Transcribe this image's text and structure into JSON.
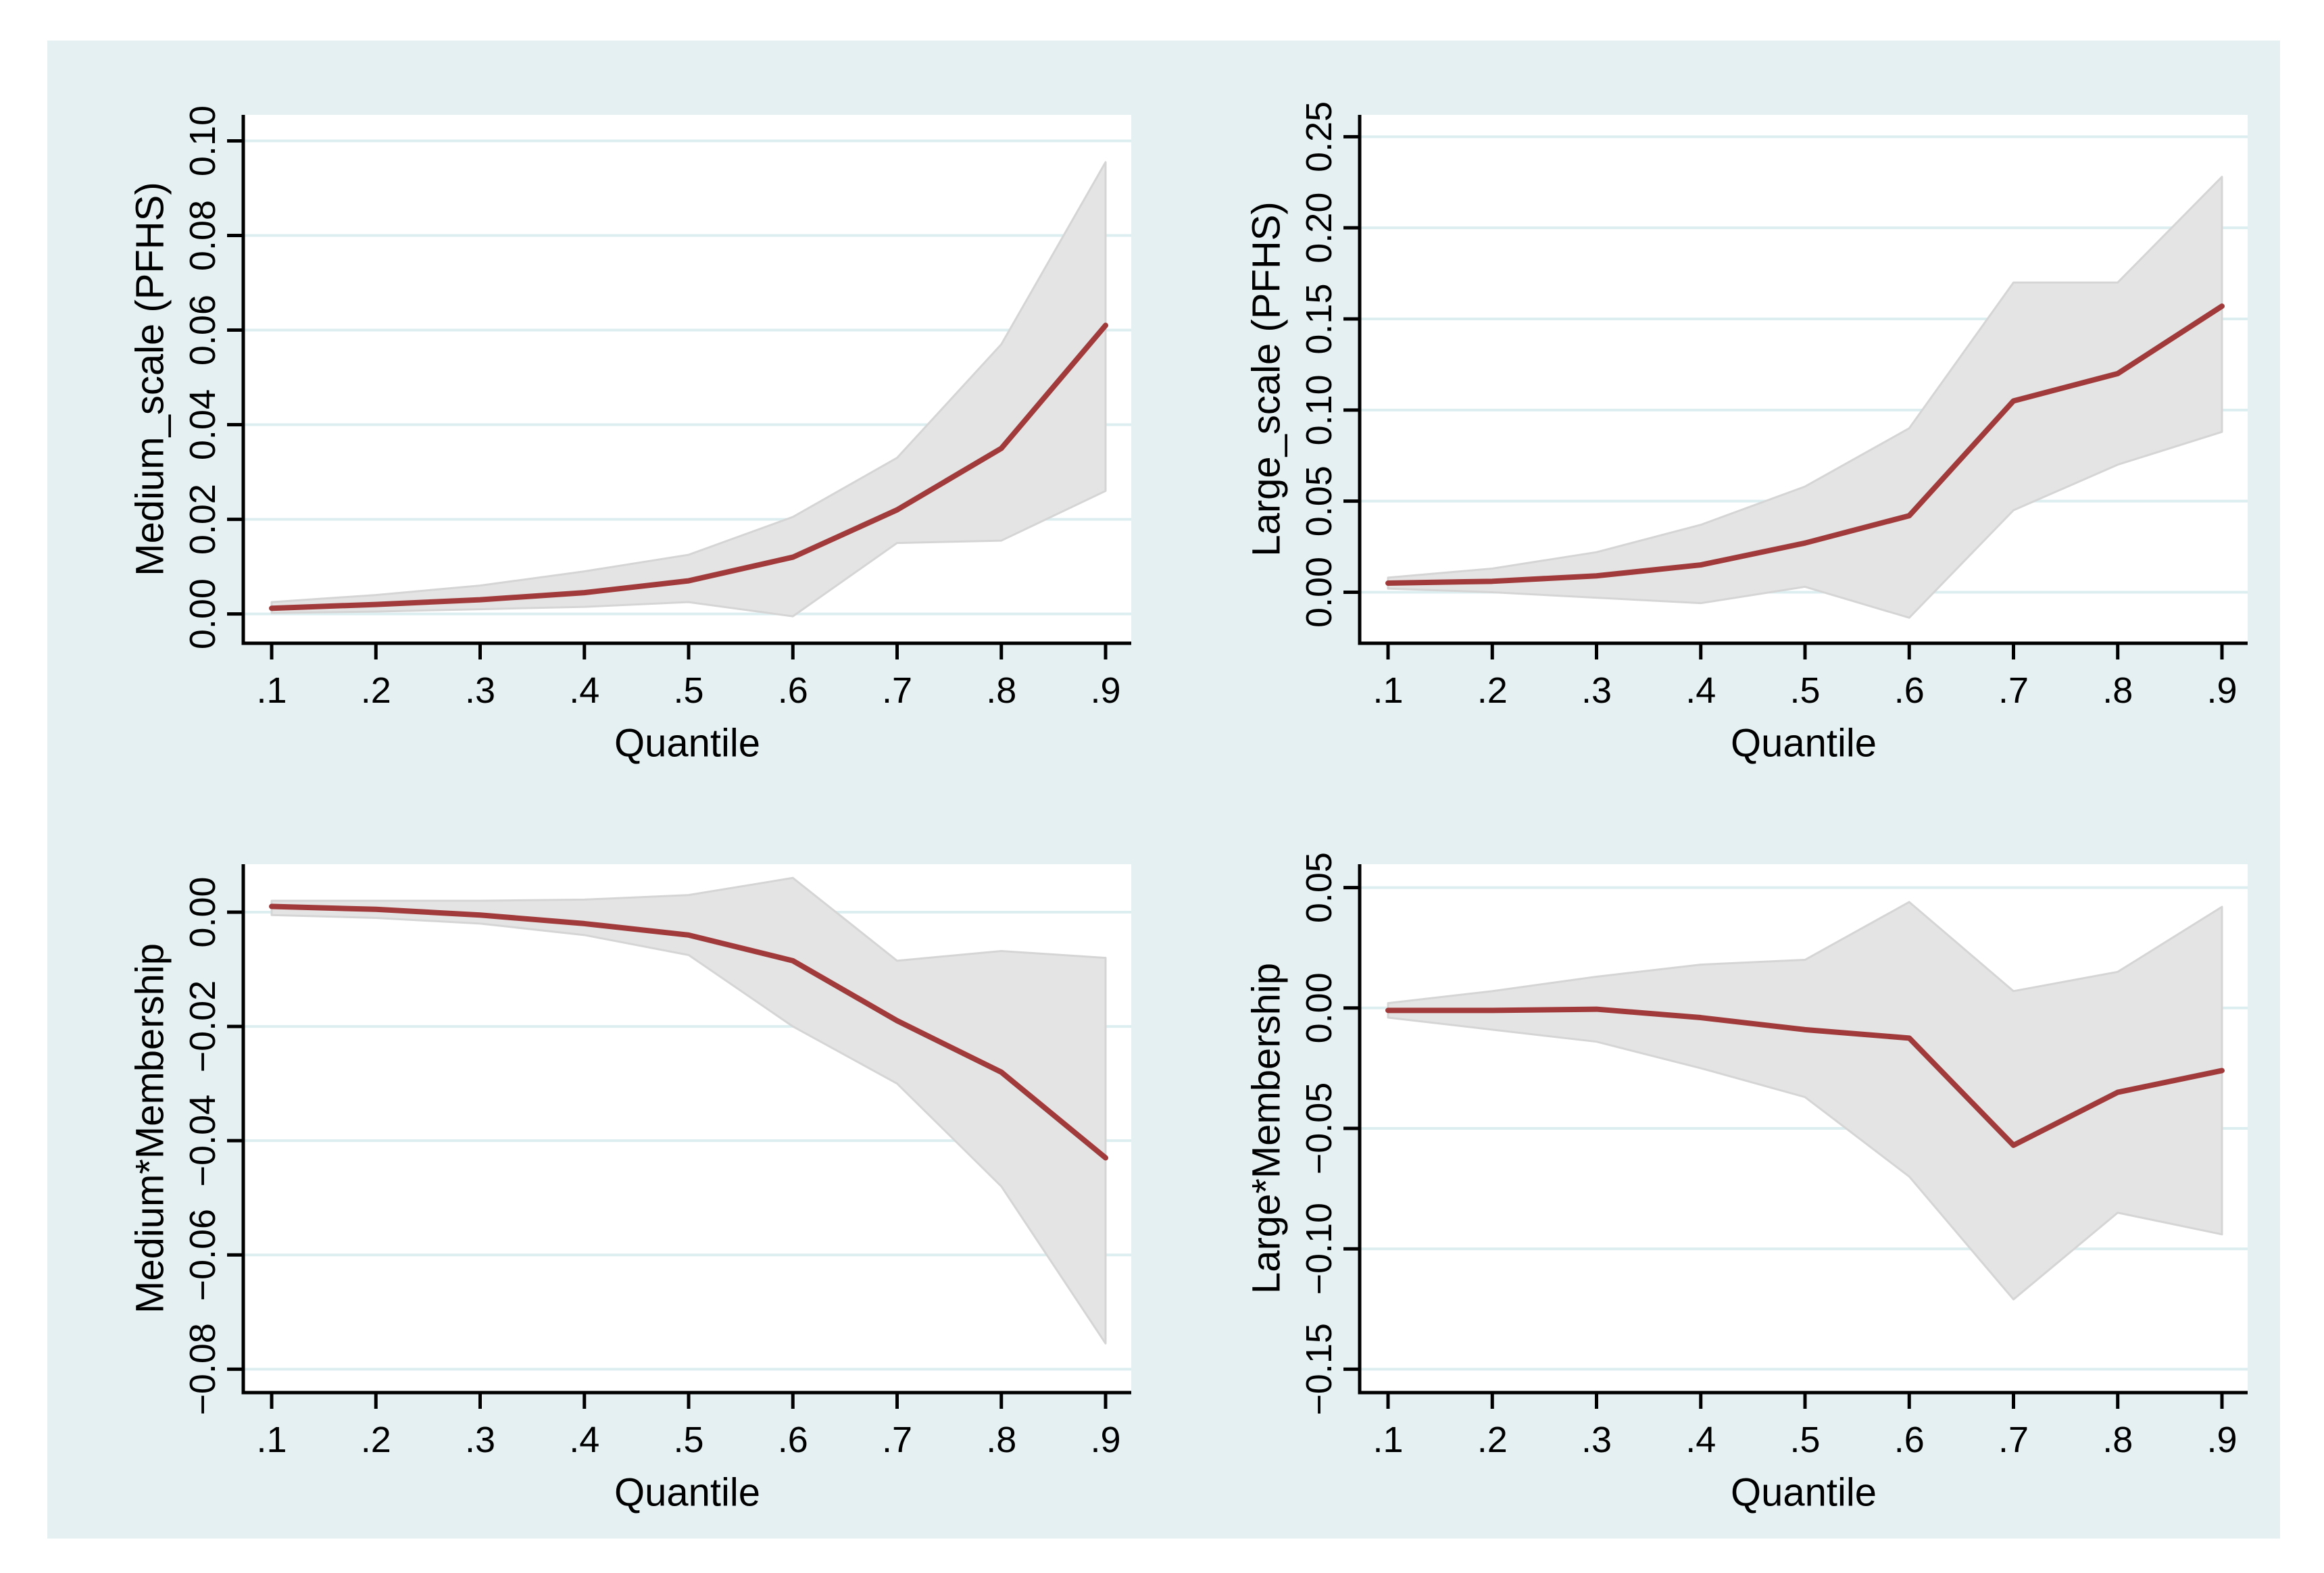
{
  "figure": {
    "name": "quantile-regression-coefficient-plots",
    "background": "#ffffff",
    "plot_region_bg": "#e4f0f2",
    "panel_bg": "#ffffff",
    "grid_color": "#ddeef0",
    "band_fill": "#e4e4e4",
    "band_edge": "#d5d5d5",
    "line_color": "#a13b3b",
    "axis_color": "#000000",
    "text_color": "#000000"
  },
  "chart_data": [
    {
      "type": "line",
      "panel": "top-left",
      "ylabel": "Medium_scale (PFHS)",
      "xlabel": "Quantile",
      "legend_position": "none",
      "grid": true,
      "x": [
        0.1,
        0.2,
        0.3,
        0.4,
        0.5,
        0.6,
        0.7,
        0.8,
        0.9
      ],
      "x_tick_labels": [
        ".1",
        ".2",
        ".3",
        ".4",
        ".5",
        ".6",
        ".7",
        ".8",
        ".9"
      ],
      "y_ticks": [
        {
          "v": 0.0,
          "label": "0.00"
        },
        {
          "v": 0.02,
          "label": "0.02"
        },
        {
          "v": 0.04,
          "label": "0.04"
        },
        {
          "v": 0.06,
          "label": "0.06"
        },
        {
          "v": 0.08,
          "label": "0.08"
        },
        {
          "v": 0.1,
          "label": "0.10"
        }
      ],
      "ylim": [
        -0.0062,
        0.1055
      ],
      "series": [
        {
          "name": "estimate",
          "values": [
            0.0012,
            0.002,
            0.003,
            0.0045,
            0.007,
            0.012,
            0.022,
            0.035,
            0.061
          ]
        },
        {
          "name": "ci_upper",
          "values": [
            0.0025,
            0.004,
            0.006,
            0.009,
            0.0125,
            0.0205,
            0.033,
            0.057,
            0.0955
          ]
        },
        {
          "name": "ci_lower",
          "values": [
            0.0002,
            0.0005,
            0.001,
            0.0015,
            0.0025,
            -0.0005,
            0.015,
            0.0155,
            0.026
          ]
        }
      ]
    },
    {
      "type": "line",
      "panel": "top-right",
      "ylabel": "Large_scale (PFHS)",
      "xlabel": "Quantile",
      "legend_position": "none",
      "grid": true,
      "x": [
        0.1,
        0.2,
        0.3,
        0.4,
        0.5,
        0.6,
        0.7,
        0.8,
        0.9
      ],
      "x_tick_labels": [
        ".1",
        ".2",
        ".3",
        ".4",
        ".5",
        ".6",
        ".7",
        ".8",
        ".9"
      ],
      "y_ticks": [
        {
          "v": 0.0,
          "label": "0.00"
        },
        {
          "v": 0.05,
          "label": "0.05"
        },
        {
          "v": 0.1,
          "label": "0.10"
        },
        {
          "v": 0.15,
          "label": "0.15"
        },
        {
          "v": 0.2,
          "label": "0.20"
        },
        {
          "v": 0.25,
          "label": "0.25"
        }
      ],
      "ylim": [
        -0.028,
        0.262
      ],
      "series": [
        {
          "name": "estimate",
          "values": [
            0.005,
            0.006,
            0.009,
            0.015,
            0.027,
            0.042,
            0.105,
            0.12,
            0.157
          ]
        },
        {
          "name": "ci_upper",
          "values": [
            0.008,
            0.013,
            0.022,
            0.037,
            0.058,
            0.09,
            0.17,
            0.17,
            0.228
          ]
        },
        {
          "name": "ci_lower",
          "values": [
            0.002,
            0.0,
            -0.003,
            -0.006,
            0.003,
            -0.014,
            0.045,
            0.07,
            0.088
          ]
        }
      ]
    },
    {
      "type": "line",
      "panel": "bottom-left",
      "ylabel": "Medium*Membership",
      "xlabel": "Quantile",
      "legend_position": "none",
      "grid": true,
      "x": [
        0.1,
        0.2,
        0.3,
        0.4,
        0.5,
        0.6,
        0.7,
        0.8,
        0.9
      ],
      "x_tick_labels": [
        ".1",
        ".2",
        ".3",
        ".4",
        ".5",
        ".6",
        ".7",
        ".8",
        ".9"
      ],
      "y_ticks": [
        {
          "v": 0.0,
          "label": "0.00"
        },
        {
          "v": -0.02,
          "label": "−0.02"
        },
        {
          "v": -0.04,
          "label": "−0.04"
        },
        {
          "v": -0.06,
          "label": "−0.06"
        },
        {
          "v": -0.08,
          "label": "−0.08"
        }
      ],
      "ylim": [
        -0.0841,
        0.0084
      ],
      "series": [
        {
          "name": "estimate",
          "values": [
            0.001,
            0.0005,
            -0.0005,
            -0.002,
            -0.004,
            -0.0085,
            -0.019,
            -0.028,
            -0.043
          ]
        },
        {
          "name": "ci_upper",
          "values": [
            0.002,
            0.002,
            0.002,
            0.0022,
            0.003,
            0.006,
            -0.0085,
            -0.0068,
            -0.008
          ]
        },
        {
          "name": "ci_lower",
          "values": [
            -0.0005,
            -0.001,
            -0.002,
            -0.004,
            -0.0075,
            -0.02,
            -0.03,
            -0.048,
            -0.0755
          ]
        }
      ]
    },
    {
      "type": "line",
      "panel": "bottom-right",
      "ylabel": "Large*Membership",
      "xlabel": "Quantile",
      "legend_position": "none",
      "grid": true,
      "x": [
        0.1,
        0.2,
        0.3,
        0.4,
        0.5,
        0.6,
        0.7,
        0.8,
        0.9
      ],
      "x_tick_labels": [
        ".1",
        ".2",
        ".3",
        ".4",
        ".5",
        ".6",
        ".7",
        ".8",
        ".9"
      ],
      "y_ticks": [
        {
          "v": 0.05,
          "label": "0.05"
        },
        {
          "v": 0.0,
          "label": "0.00"
        },
        {
          "v": -0.05,
          "label": "−0.05"
        },
        {
          "v": -0.1,
          "label": "−0.10"
        },
        {
          "v": -0.15,
          "label": "−0.15"
        }
      ],
      "ylim": [
        -0.1597,
        0.0597
      ],
      "series": [
        {
          "name": "estimate",
          "values": [
            -0.001,
            -0.001,
            -0.0005,
            -0.004,
            -0.009,
            -0.0125,
            -0.057,
            -0.035,
            -0.026
          ]
        },
        {
          "name": "ci_upper",
          "values": [
            0.002,
            0.007,
            0.013,
            0.018,
            0.02,
            0.044,
            0.007,
            0.015,
            0.042
          ]
        },
        {
          "name": "ci_lower",
          "values": [
            -0.004,
            -0.009,
            -0.014,
            -0.025,
            -0.037,
            -0.07,
            -0.121,
            -0.085,
            -0.094
          ]
        }
      ]
    }
  ]
}
